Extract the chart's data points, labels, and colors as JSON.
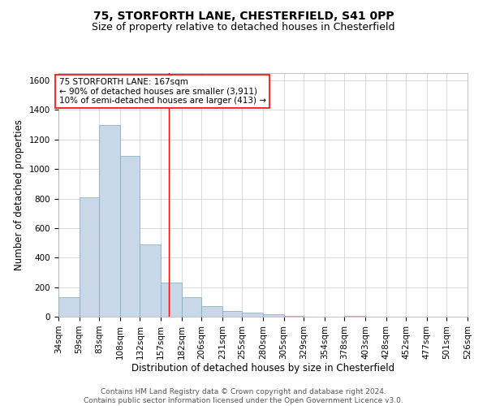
{
  "title_line1": "75, STORFORTH LANE, CHESTERFIELD, S41 0PP",
  "title_line2": "Size of property relative to detached houses in Chesterfield",
  "xlabel": "Distribution of detached houses by size in Chesterfield",
  "ylabel": "Number of detached properties",
  "bar_color": "#c8d8e8",
  "bar_edge_color": "#7aaabb",
  "grid_color": "#cccccc",
  "annotation_line_color": "red",
  "annotation_text_line1": "75 STORFORTH LANE: 167sqm",
  "annotation_text_line2": "← 90% of detached houses are smaller (3,911)",
  "annotation_text_line3": "10% of semi-detached houses are larger (413) →",
  "footer_line1": "Contains HM Land Registry data © Crown copyright and database right 2024.",
  "footer_line2": "Contains public sector information licensed under the Open Government Licence v3.0.",
  "bin_labels": [
    "34sqm",
    "59sqm",
    "83sqm",
    "108sqm",
    "132sqm",
    "157sqm",
    "182sqm",
    "206sqm",
    "231sqm",
    "255sqm",
    "280sqm",
    "305sqm",
    "329sqm",
    "354sqm",
    "378sqm",
    "403sqm",
    "428sqm",
    "452sqm",
    "477sqm",
    "501sqm",
    "526sqm"
  ],
  "bar_heights": [
    130,
    810,
    1300,
    1090,
    490,
    230,
    130,
    70,
    40,
    25,
    15,
    5,
    2,
    1,
    5,
    1,
    0,
    0,
    0,
    0,
    0
  ],
  "bin_edges": [
    34,
    59,
    83,
    108,
    132,
    157,
    182,
    206,
    231,
    255,
    280,
    305,
    329,
    354,
    378,
    403,
    428,
    452,
    477,
    501,
    526
  ],
  "property_size": 167,
  "ylim": [
    0,
    1650
  ],
  "yticks": [
    0,
    200,
    400,
    600,
    800,
    1000,
    1200,
    1400,
    1600
  ],
  "background_color": "#ffffff",
  "title_fontsize": 10,
  "subtitle_fontsize": 9,
  "axis_label_fontsize": 8.5,
  "tick_fontsize": 7.5,
  "footer_fontsize": 6.5,
  "annotation_fontsize": 7.5
}
